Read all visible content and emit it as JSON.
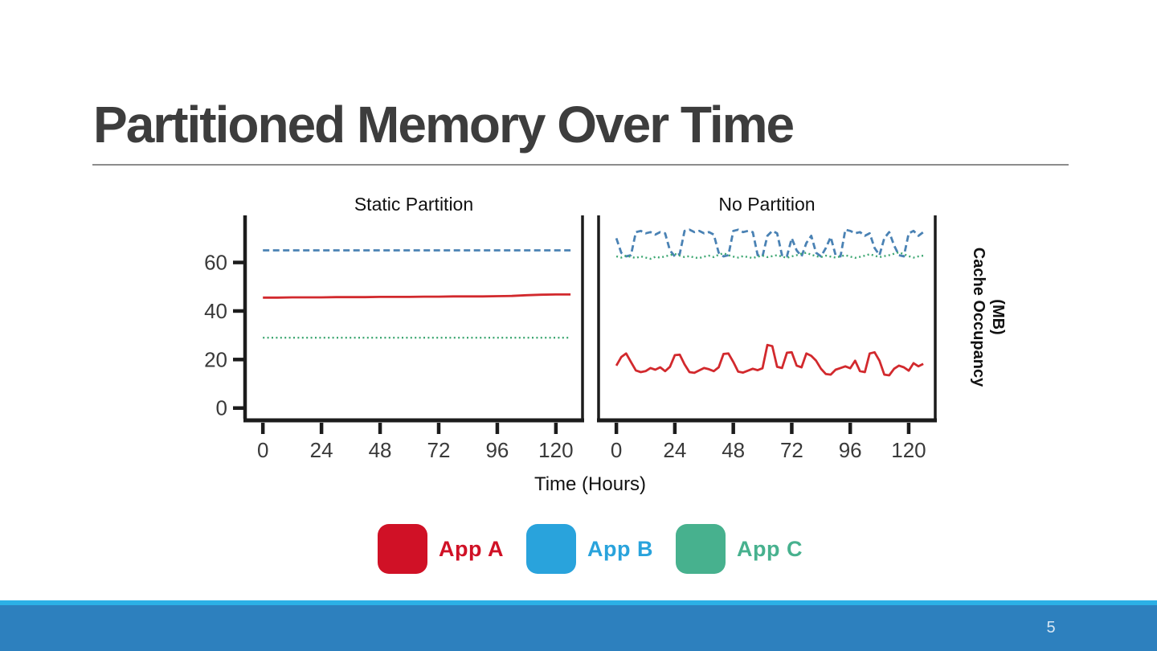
{
  "slide": {
    "title": "Partitioned Memory Over Time",
    "page_number": "5"
  },
  "figure": {
    "xlabel": "Time (Hours)",
    "ylabel_line1": "Cache Occupancy",
    "ylabel_line2": "(MB)"
  },
  "legend": {
    "items": [
      {
        "label": "App A",
        "color": "#d01126"
      },
      {
        "label": "App B",
        "color": "#29a3dc"
      },
      {
        "label": "App C",
        "color": "#47b18e"
      }
    ]
  },
  "footer": {
    "strip_color": "#2cb0e6",
    "bar_color": "#2d80be"
  },
  "chart_data": [
    {
      "type": "line",
      "title": "Static Partition",
      "xlabel": "Time (Hours)",
      "ylabel": "Cache Occupancy (MB)",
      "grid": false,
      "xlim": [
        -7.3,
        130.9
      ],
      "ylim": [
        -4.4,
        79.4
      ],
      "x_ticks": [
        0,
        24,
        48,
        72,
        96,
        120
      ],
      "y_ticks": [
        0,
        20,
        40,
        60
      ],
      "series": [
        {
          "name": "App B",
          "color": "#4a82b4",
          "line_style": "dashed",
          "x": [
            0,
            6,
            12,
            18,
            24,
            30,
            36,
            42,
            48,
            54,
            60,
            66,
            72,
            78,
            84,
            90,
            96,
            102,
            108,
            114,
            120,
            126
          ],
          "values": [
            65,
            65,
            65,
            65,
            65,
            65,
            65,
            65,
            65,
            65,
            65,
            65,
            65,
            65,
            65,
            65,
            65,
            65,
            65,
            65,
            65,
            65
          ]
        },
        {
          "name": "App A",
          "color": "#d2292d",
          "line_style": "solid",
          "x": [
            0,
            6,
            12,
            18,
            24,
            30,
            36,
            42,
            48,
            54,
            60,
            66,
            72,
            78,
            84,
            90,
            96,
            102,
            108,
            114,
            120,
            126
          ],
          "values": [
            45.5,
            45.5,
            45.6,
            45.6,
            45.6,
            45.7,
            45.7,
            45.7,
            45.8,
            45.8,
            45.8,
            45.9,
            45.9,
            46,
            46,
            46,
            46.1,
            46.2,
            46.5,
            46.7,
            46.8,
            46.8
          ]
        },
        {
          "name": "App C",
          "color": "#3fa873",
          "line_style": "dotted",
          "x": [
            0,
            6,
            12,
            18,
            24,
            30,
            36,
            42,
            48,
            54,
            60,
            66,
            72,
            78,
            84,
            90,
            96,
            102,
            108,
            114,
            120,
            126
          ],
          "values": [
            29,
            29,
            29,
            29,
            29,
            29,
            29,
            29,
            29,
            29,
            29,
            29,
            29,
            29,
            29,
            29,
            29,
            29,
            29,
            29,
            29,
            29
          ]
        }
      ]
    },
    {
      "type": "line",
      "title": "No Partition",
      "xlabel": "Time (Hours)",
      "ylabel": "Cache Occupancy (MB)",
      "grid": false,
      "xlim": [
        -7.3,
        130.9
      ],
      "ylim": [
        -4.4,
        79.4
      ],
      "x_ticks": [
        0,
        24,
        48,
        72,
        96,
        120
      ],
      "y_ticks": [
        0,
        20,
        40,
        60
      ],
      "series": [
        {
          "name": "App B",
          "color": "#4a82b4",
          "line_style": "dashed",
          "x": [
            0,
            2,
            4,
            6,
            8,
            10,
            12,
            14,
            16,
            18,
            20,
            22,
            24,
            26,
            28,
            30,
            32,
            34,
            36,
            38,
            40,
            42,
            44,
            46,
            48,
            50,
            52,
            54,
            56,
            58,
            60,
            62,
            64,
            66,
            68,
            70,
            72,
            74,
            76,
            78,
            80,
            82,
            84,
            86,
            88,
            90,
            92,
            94,
            96,
            98,
            100,
            102,
            104,
            106,
            108,
            110,
            112,
            114,
            116,
            118,
            120,
            122,
            124,
            126
          ],
          "values": [
            70,
            64,
            62.5,
            63,
            72.5,
            73,
            72,
            72.5,
            71.5,
            72.5,
            72,
            65,
            62.5,
            63.5,
            73,
            73.5,
            72.5,
            73,
            72,
            72.5,
            71.5,
            64,
            62.5,
            63,
            73,
            73.5,
            72.5,
            73,
            72.5,
            63,
            62.5,
            71,
            73,
            72,
            63,
            62.5,
            70,
            65,
            62.5,
            68,
            71,
            64,
            62.5,
            66,
            70.5,
            63,
            62.5,
            73.5,
            73,
            72,
            72.5,
            71,
            72,
            66,
            63,
            70,
            72.5,
            67,
            63,
            62.5,
            72,
            73,
            71,
            72.5
          ]
        },
        {
          "name": "App C",
          "color": "#3fa873",
          "line_style": "dotted",
          "x": [
            0,
            2,
            4,
            6,
            8,
            10,
            12,
            14,
            16,
            18,
            20,
            22,
            24,
            26,
            28,
            30,
            32,
            34,
            36,
            38,
            40,
            42,
            44,
            46,
            48,
            50,
            52,
            54,
            56,
            58,
            60,
            62,
            64,
            66,
            68,
            70,
            72,
            74,
            76,
            78,
            80,
            82,
            84,
            86,
            88,
            90,
            92,
            94,
            96,
            98,
            100,
            102,
            104,
            106,
            108,
            110,
            112,
            114,
            116,
            118,
            120,
            122,
            124,
            126
          ],
          "values": [
            62.5,
            62,
            62.8,
            62.3,
            61.8,
            62.5,
            62,
            61.5,
            62.3,
            62,
            62.5,
            63,
            63.5,
            62.8,
            62.2,
            62.6,
            62,
            61.8,
            62.4,
            62.8,
            62.2,
            63.2,
            63.8,
            63,
            62.4,
            62,
            62.6,
            62.2,
            61.8,
            62.4,
            62.8,
            62.2,
            62.6,
            63,
            62.4,
            61.9,
            62.5,
            63,
            63.6,
            64,
            63.2,
            62.6,
            62.2,
            62.8,
            62.4,
            62,
            62.5,
            63,
            62.4,
            61.9,
            62.3,
            62.8,
            63.4,
            62.8,
            62.2,
            62.6,
            63,
            63.6,
            64.2,
            63.4,
            62.6,
            62,
            62.5,
            62.8
          ]
        },
        {
          "name": "App A",
          "color": "#d2292d",
          "line_style": "solid",
          "x": [
            0,
            2,
            4,
            6,
            8,
            10,
            12,
            14,
            16,
            18,
            20,
            22,
            24,
            26,
            28,
            30,
            32,
            34,
            36,
            38,
            40,
            42,
            44,
            46,
            48,
            50,
            52,
            54,
            56,
            58,
            60,
            62,
            64,
            66,
            68,
            70,
            72,
            74,
            76,
            78,
            80,
            82,
            84,
            86,
            88,
            90,
            92,
            94,
            96,
            98,
            100,
            102,
            104,
            106,
            108,
            110,
            112,
            114,
            116,
            118,
            120,
            122,
            124,
            126
          ],
          "values": [
            17.5,
            21,
            22.5,
            19,
            15.5,
            14.8,
            15.2,
            16.5,
            15.8,
            16.8,
            15.2,
            17,
            21.8,
            22,
            18,
            14.8,
            14.5,
            15.5,
            16.5,
            16,
            15.2,
            16.8,
            22.3,
            22.5,
            19,
            15,
            14.6,
            15.4,
            16.2,
            15.6,
            16.4,
            26,
            25.5,
            17,
            16.5,
            22.8,
            23,
            17.5,
            16.8,
            22.5,
            21.5,
            19.5,
            16.2,
            14,
            13.8,
            15.8,
            16.5,
            17.2,
            16.4,
            19.5,
            15.2,
            14.8,
            22.5,
            23,
            19.5,
            13.8,
            13.5,
            16.2,
            17.5,
            16.8,
            15.4,
            18.5,
            17.2,
            18.2
          ]
        }
      ]
    }
  ]
}
